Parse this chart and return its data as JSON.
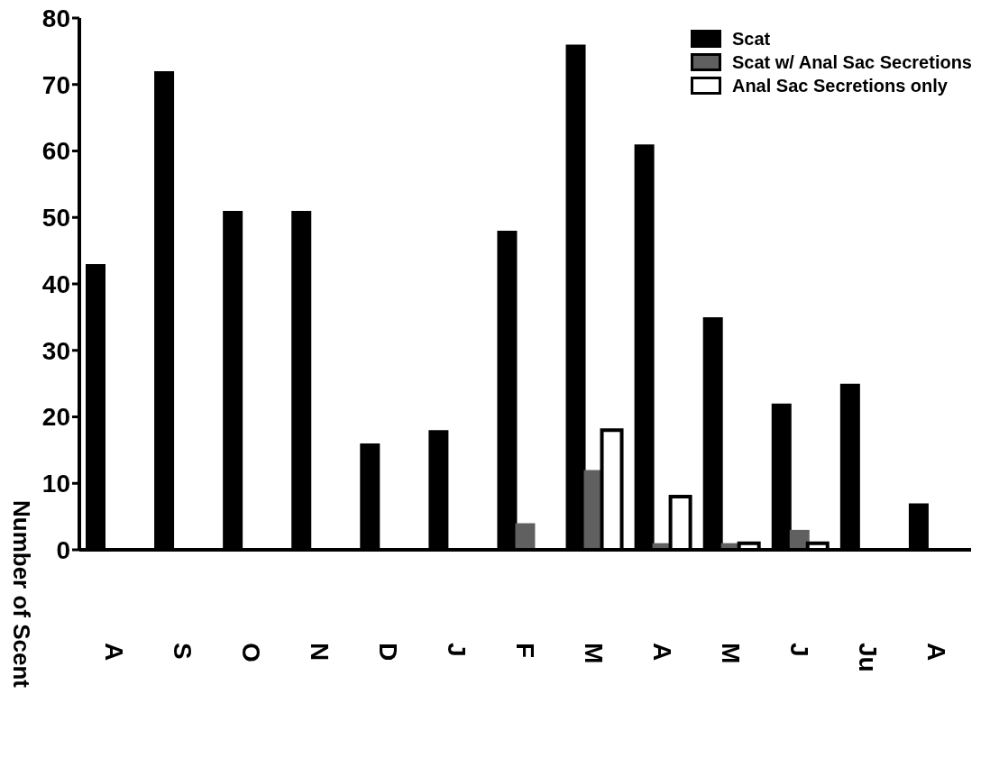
{
  "chart_data": {
    "type": "bar",
    "ylabel": "Number of Scent",
    "categories": [
      "A",
      "S",
      "O",
      "N",
      "D",
      "J",
      "F",
      "M",
      "A",
      "M",
      "J",
      "Ju",
      "A"
    ],
    "series": [
      {
        "name": "Scat",
        "color": "#000000",
        "values": [
          43,
          72,
          51,
          51,
          16,
          18,
          48,
          76,
          61,
          35,
          22,
          25,
          7
        ]
      },
      {
        "name": "Scat w/ Anal Sac Secretions",
        "color": "#606060",
        "values": [
          0,
          0,
          0,
          0,
          0,
          0,
          4,
          12,
          1,
          1,
          3,
          0,
          0
        ]
      },
      {
        "name": "Anal Sac Secretions only",
        "color": "#ffffff",
        "values": [
          0,
          0,
          0,
          0,
          0,
          0,
          0,
          18,
          8,
          1,
          1,
          0,
          0
        ]
      }
    ],
    "ylim": [
      0,
      80
    ],
    "yticks": [
      0,
      10,
      20,
      30,
      40,
      50,
      60,
      70,
      80
    ],
    "grid": false,
    "legend": "top right"
  }
}
